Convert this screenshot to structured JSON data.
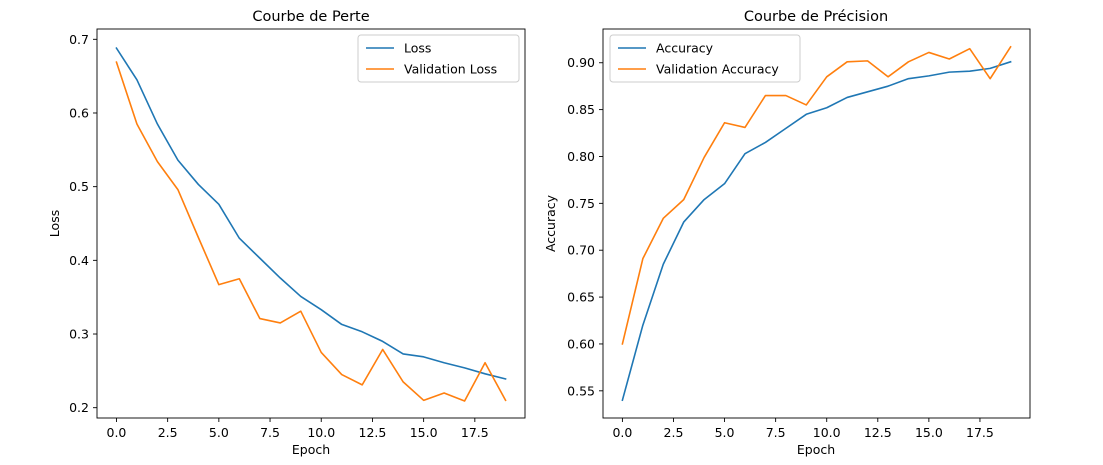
{
  "chart_data": [
    {
      "type": "line",
      "title": "Courbe de Perte",
      "xlabel": "Epoch",
      "ylabel": "Loss",
      "xlim": [
        -0.95,
        19.95
      ],
      "ylim": [
        0.186,
        0.714
      ],
      "xticks": [
        0,
        2.5,
        5,
        7.5,
        10,
        12.5,
        15,
        17.5
      ],
      "xtick_labels": [
        "0.0",
        "2.5",
        "5.0",
        "7.5",
        "10.0",
        "12.5",
        "15.0",
        "17.5"
      ],
      "yticks": [
        0.2,
        0.3,
        0.4,
        0.5,
        0.6,
        0.7
      ],
      "ytick_labels": [
        "0.2",
        "0.3",
        "0.4",
        "0.5",
        "0.6",
        "0.7"
      ],
      "grid": false,
      "legend_position": "top-right",
      "x": [
        0,
        1,
        2,
        3,
        4,
        5,
        6,
        7,
        8,
        9,
        10,
        11,
        12,
        13,
        14,
        15,
        16,
        17,
        18,
        19
      ],
      "series": [
        {
          "name": "Loss",
          "color": "#1f77b4",
          "values": [
            0.688,
            0.645,
            0.585,
            0.536,
            0.503,
            0.476,
            0.43,
            0.403,
            0.376,
            0.351,
            0.333,
            0.313,
            0.303,
            0.29,
            0.273,
            0.269,
            0.261,
            0.254,
            0.246,
            0.239
          ]
        },
        {
          "name": "Validation Loss",
          "color": "#ff7f0e",
          "values": [
            0.669,
            0.585,
            0.534,
            0.496,
            0.431,
            0.367,
            0.375,
            0.321,
            0.315,
            0.331,
            0.275,
            0.245,
            0.231,
            0.279,
            0.235,
            0.21,
            0.22,
            0.209,
            0.261,
            0.21
          ]
        }
      ]
    },
    {
      "type": "line",
      "title": "Courbe de Précision",
      "xlabel": "Epoch",
      "ylabel": "Accuracy",
      "xlim": [
        -0.95,
        19.95
      ],
      "ylim": [
        0.521,
        0.936
      ],
      "xticks": [
        0,
        2.5,
        5,
        7.5,
        10,
        12.5,
        15,
        17.5
      ],
      "xtick_labels": [
        "0.0",
        "2.5",
        "5.0",
        "7.5",
        "10.0",
        "12.5",
        "15.0",
        "17.5"
      ],
      "yticks": [
        0.55,
        0.6,
        0.65,
        0.7,
        0.75,
        0.8,
        0.85,
        0.9
      ],
      "ytick_labels": [
        "0.55",
        "0.60",
        "0.65",
        "0.70",
        "0.75",
        "0.80",
        "0.85",
        "0.90"
      ],
      "grid": false,
      "legend_position": "top-left",
      "x": [
        0,
        1,
        2,
        3,
        4,
        5,
        6,
        7,
        8,
        9,
        10,
        11,
        12,
        13,
        14,
        15,
        16,
        17,
        18,
        19
      ],
      "series": [
        {
          "name": "Accuracy",
          "color": "#1f77b4",
          "values": [
            0.54,
            0.62,
            0.685,
            0.73,
            0.754,
            0.771,
            0.803,
            0.815,
            0.83,
            0.845,
            0.852,
            0.863,
            0.869,
            0.875,
            0.883,
            0.886,
            0.89,
            0.891,
            0.894,
            0.901
          ]
        },
        {
          "name": "Validation Accuracy",
          "color": "#ff7f0e",
          "values": [
            0.6,
            0.691,
            0.734,
            0.754,
            0.799,
            0.836,
            0.831,
            0.865,
            0.865,
            0.855,
            0.885,
            0.901,
            0.902,
            0.885,
            0.901,
            0.911,
            0.904,
            0.915,
            0.883,
            0.917
          ]
        }
      ]
    }
  ]
}
